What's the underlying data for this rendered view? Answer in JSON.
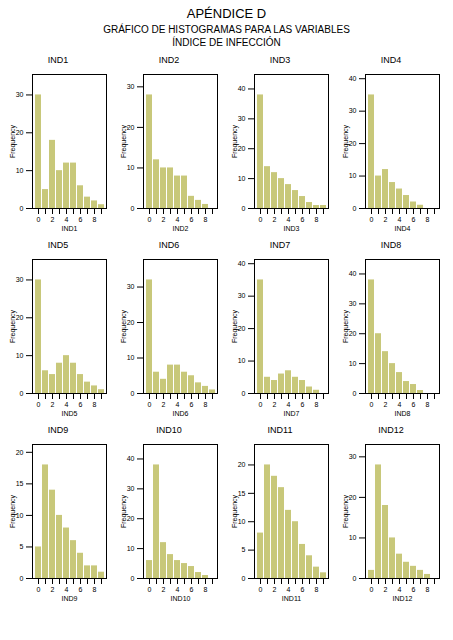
{
  "title": "APÉNDICE D",
  "subtitle": "GRÁFICO DE HISTOGRAMAS PARA LAS VARIABLES\nÍNDICE DE INFECCIÓN",
  "chart_data": [
    {
      "type": "bar",
      "title": "IND1",
      "x_label": "IND1",
      "y_label": "Frequency",
      "color": "#c8c87a",
      "categories": [
        "0",
        null,
        "2",
        null,
        "4",
        null,
        "6",
        null,
        "8",
        null
      ],
      "values": [
        30,
        5,
        18,
        10,
        12,
        12,
        6,
        3,
        2,
        1
      ],
      "ylim": [
        0,
        35.4
      ],
      "yticks": [
        0,
        10,
        20,
        30
      ]
    },
    {
      "type": "bar",
      "title": "IND2",
      "x_label": "IND2",
      "y_label": "Frequency",
      "color": "#c8c87a",
      "categories": [
        "0",
        null,
        "2",
        null,
        "4",
        null,
        "6",
        null,
        "8",
        null
      ],
      "values": [
        28,
        12,
        10,
        10,
        8,
        8,
        3,
        2,
        1,
        0
      ],
      "ylim": [
        0,
        33.04
      ],
      "yticks": [
        0,
        10,
        20,
        30
      ]
    },
    {
      "type": "bar",
      "title": "IND3",
      "x_label": "IND3",
      "y_label": "Frequency",
      "color": "#c8c87a",
      "categories": [
        "0",
        null,
        "2",
        null,
        "4",
        null,
        "6",
        null,
        "8",
        null
      ],
      "values": [
        38,
        14,
        12,
        10,
        8,
        6,
        4,
        2,
        1,
        1
      ],
      "ylim": [
        0,
        44.84
      ],
      "yticks": [
        0,
        10,
        20,
        30,
        40
      ]
    },
    {
      "type": "bar",
      "title": "IND4",
      "x_label": "IND4",
      "y_label": "Frequency",
      "color": "#c8c87a",
      "categories": [
        "0",
        null,
        "2",
        null,
        "4",
        null,
        "6",
        null,
        "8",
        null
      ],
      "values": [
        35,
        10,
        12,
        8,
        6,
        4,
        2,
        1,
        0,
        0
      ],
      "ylim": [
        0,
        41.3
      ],
      "yticks": [
        0,
        10,
        20,
        30,
        40
      ]
    },
    {
      "type": "bar",
      "title": "IND5",
      "x_label": "IND5",
      "y_label": "Frequency",
      "color": "#c8c87a",
      "categories": [
        "0",
        null,
        "2",
        null,
        "4",
        null,
        "6",
        null,
        "8",
        null
      ],
      "values": [
        30,
        6,
        5,
        8,
        10,
        8,
        5,
        3,
        2,
        1
      ],
      "ylim": [
        0,
        35.4
      ],
      "yticks": [
        0,
        10,
        20,
        30
      ]
    },
    {
      "type": "bar",
      "title": "IND6",
      "x_label": "IND6",
      "y_label": "Frequency",
      "color": "#c8c87a",
      "categories": [
        "0",
        null,
        "2",
        null,
        "4",
        null,
        "6",
        null,
        "8",
        null
      ],
      "values": [
        32,
        6,
        4,
        8,
        8,
        6,
        5,
        3,
        2,
        1
      ],
      "ylim": [
        0,
        37.76
      ],
      "yticks": [
        0,
        10,
        20,
        30
      ]
    },
    {
      "type": "bar",
      "title": "IND7",
      "x_label": "IND7",
      "y_label": "Frequency",
      "color": "#c8c87a",
      "categories": [
        "0",
        null,
        "2",
        null,
        "4",
        null,
        "6",
        null,
        "8",
        null
      ],
      "values": [
        35,
        5,
        4,
        6,
        7,
        5,
        4,
        2,
        1,
        0
      ],
      "ylim": [
        0,
        41.3
      ],
      "yticks": [
        0,
        10,
        20,
        30,
        40
      ]
    },
    {
      "type": "bar",
      "title": "IND8",
      "x_label": "IND8",
      "y_label": "Frequency",
      "color": "#c8c87a",
      "categories": [
        "0",
        null,
        "2",
        null,
        "4",
        null,
        "6",
        null,
        "8",
        null
      ],
      "values": [
        38,
        20,
        14,
        10,
        7,
        4,
        3,
        1,
        0,
        0
      ],
      "ylim": [
        0,
        44.84
      ],
      "yticks": [
        0,
        10,
        20,
        30,
        40
      ]
    },
    {
      "type": "bar",
      "title": "IND9",
      "x_label": "IND9",
      "y_label": "Frequency",
      "color": "#c8c87a",
      "categories": [
        "0",
        null,
        "2",
        null,
        "4",
        null,
        "6",
        null,
        "8",
        null
      ],
      "values": [
        5,
        18,
        14,
        10,
        8,
        6,
        4,
        2,
        2,
        1
      ],
      "ylim": [
        0,
        21.24
      ],
      "yticks": [
        0,
        5,
        10,
        15,
        20
      ]
    },
    {
      "type": "bar",
      "title": "IND10",
      "x_label": "IND10",
      "y_label": "Frequency",
      "color": "#c8c87a",
      "categories": [
        "0",
        null,
        "2",
        null,
        "4",
        null,
        "6",
        null,
        "8",
        null
      ],
      "values": [
        6,
        38,
        12,
        8,
        6,
        5,
        4,
        2,
        1,
        0
      ],
      "ylim": [
        0,
        44.84
      ],
      "yticks": [
        0,
        10,
        20,
        30,
        40
      ]
    },
    {
      "type": "bar",
      "title": "IND11",
      "x_label": "IND11",
      "y_label": "Frequency",
      "color": "#c8c87a",
      "categories": [
        "0",
        null,
        "2",
        null,
        "4",
        null,
        "6",
        null,
        "8",
        null
      ],
      "values": [
        8,
        20,
        18,
        16,
        12,
        10,
        6,
        4,
        2,
        1
      ],
      "ylim": [
        0,
        23.6
      ],
      "yticks": [
        0,
        5,
        10,
        15,
        20
      ]
    },
    {
      "type": "bar",
      "title": "IND12",
      "x_label": "IND12",
      "y_label": "Frequency",
      "color": "#c8c87a",
      "categories": [
        "0",
        null,
        "2",
        null,
        "4",
        null,
        "6",
        null,
        "8",
        null
      ],
      "values": [
        2,
        28,
        18,
        10,
        6,
        4,
        3,
        2,
        1,
        0
      ],
      "ylim": [
        0,
        33.04
      ],
      "yticks": [
        0,
        10,
        20,
        30
      ]
    }
  ]
}
